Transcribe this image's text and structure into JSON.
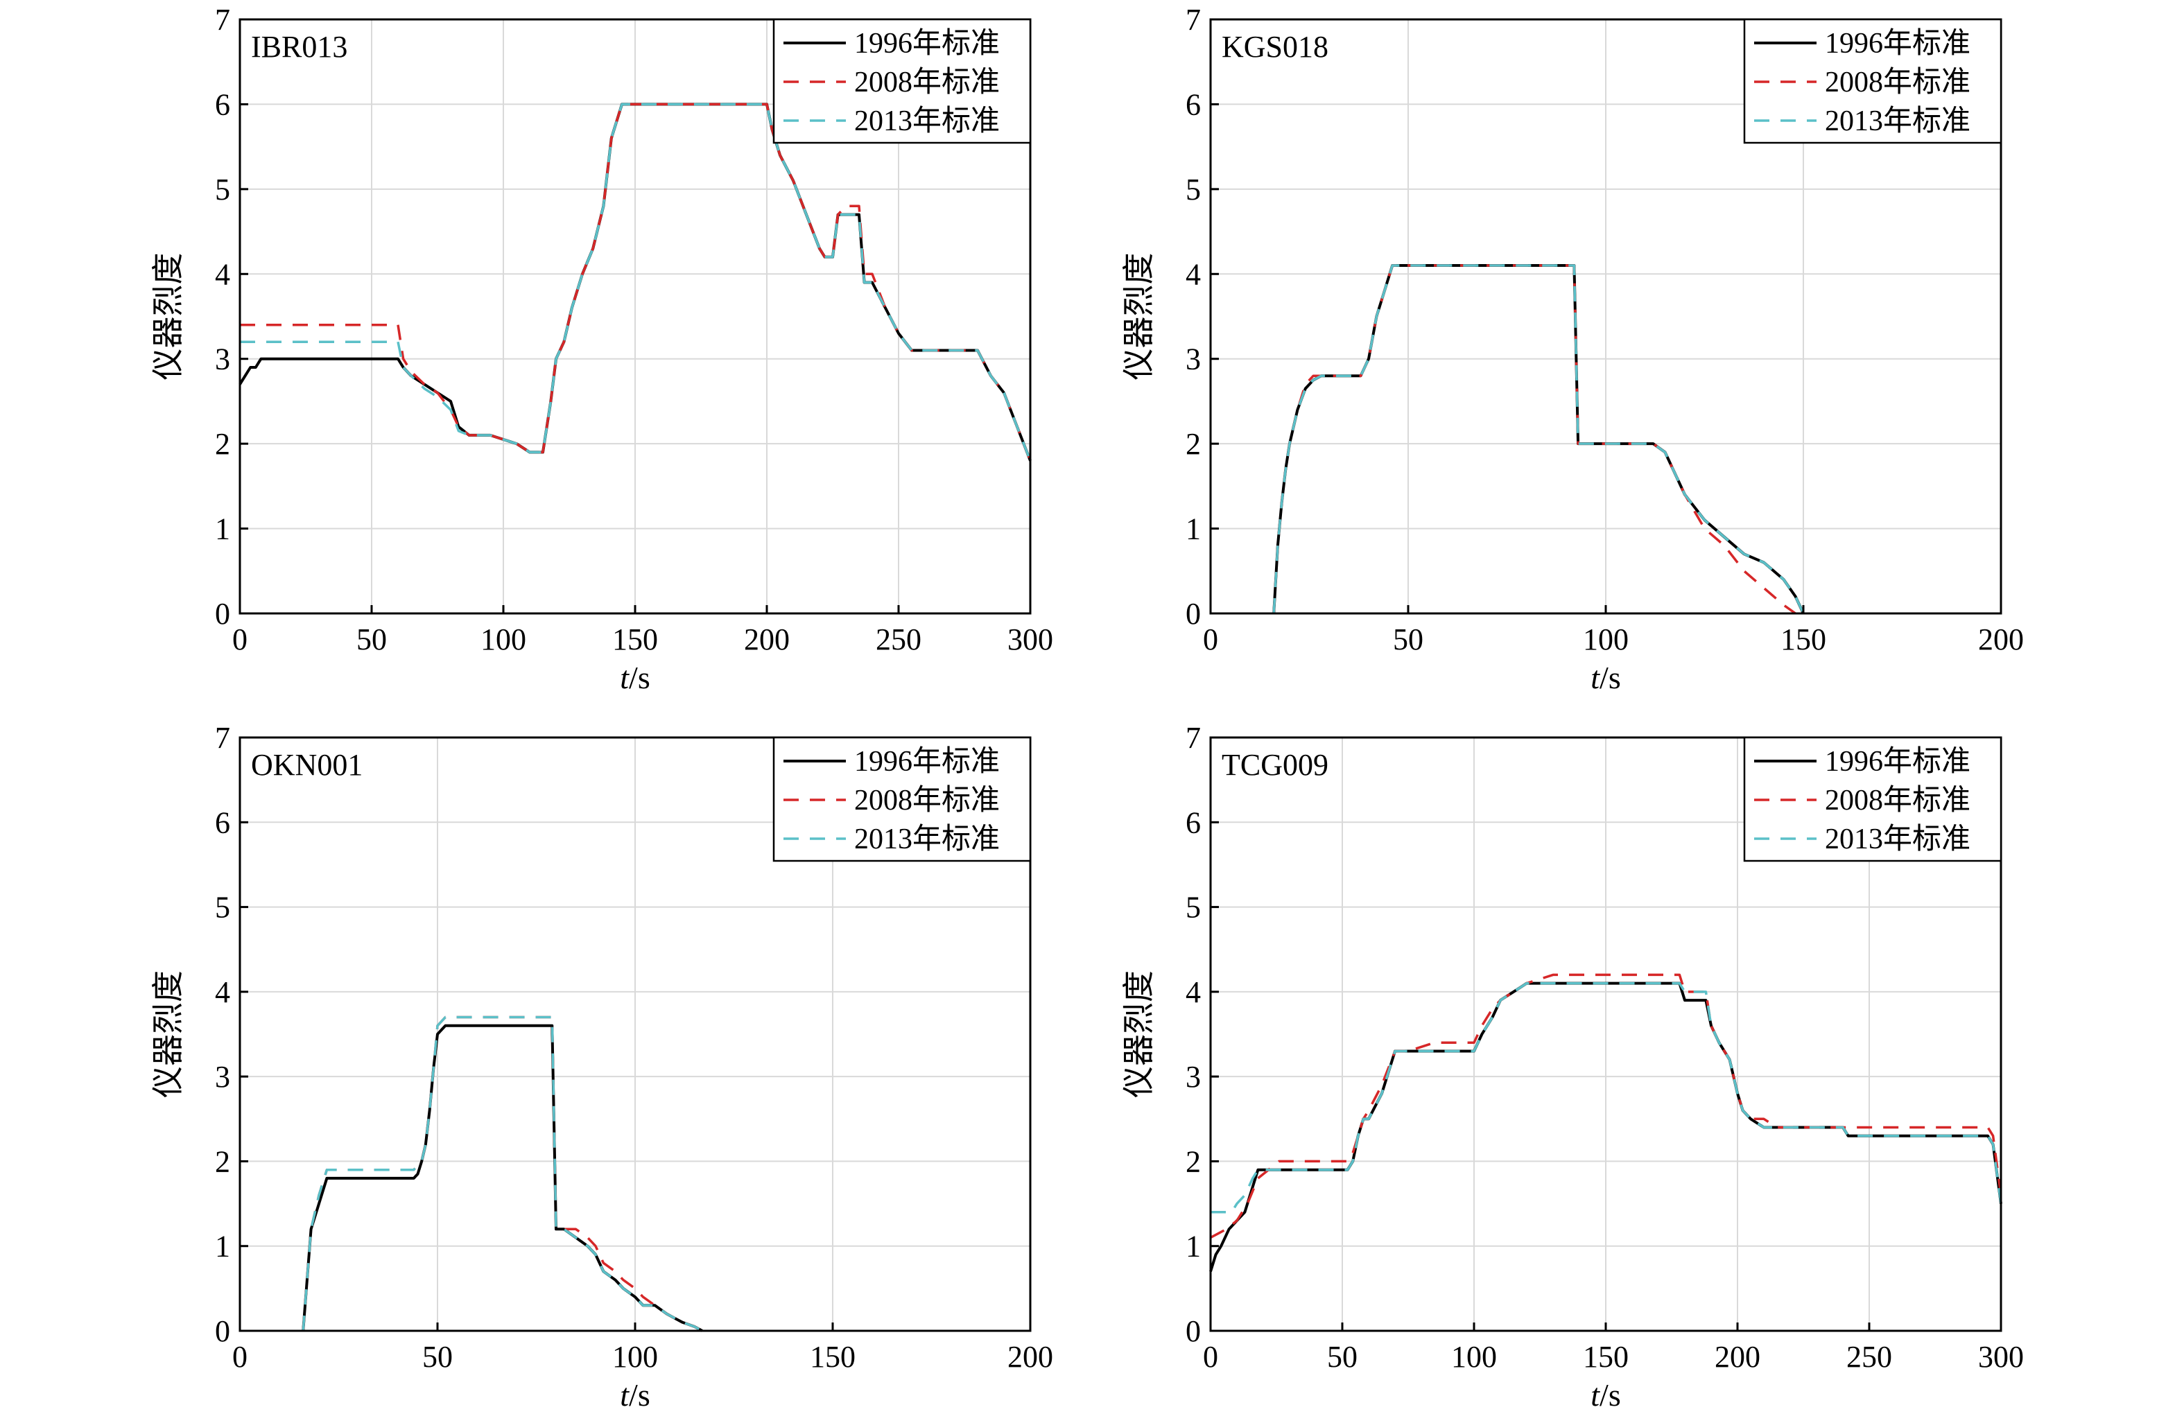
{
  "colors": {
    "series_1996": "#000000",
    "series_2008": "#d62728",
    "series_2013": "#5bc0c8",
    "grid": "#d9d9d9",
    "axis": "#000000"
  },
  "chart_data": [
    {
      "type": "line",
      "station": "IBR013",
      "xlabel_italic": "t",
      "xlabel_unit": "/s",
      "ylabel": "仪器烈度",
      "xlim": [
        0,
        300
      ],
      "ylim": [
        0,
        7
      ],
      "xticks": [
        0,
        50,
        100,
        150,
        200,
        250,
        300
      ],
      "yticks": [
        0,
        1,
        2,
        3,
        4,
        5,
        6,
        7
      ],
      "grid": true,
      "legend_position": "top-right",
      "series": [
        {
          "name": "1996年标准",
          "style": "solid",
          "x": [
            0,
            2,
            4,
            6,
            8,
            60,
            62,
            65,
            70,
            75,
            80,
            83,
            87,
            95,
            105,
            110,
            115,
            118,
            120,
            123,
            126,
            130,
            134,
            138,
            141,
            145,
            150,
            200,
            202,
            205,
            210,
            215,
            220,
            222,
            225,
            227,
            235,
            237,
            240,
            245,
            250,
            255,
            260,
            265,
            270,
            275,
            280,
            285,
            290,
            295,
            300
          ],
          "y": [
            2.7,
            2.8,
            2.9,
            2.9,
            3.0,
            3.0,
            2.9,
            2.8,
            2.7,
            2.6,
            2.5,
            2.2,
            2.1,
            2.1,
            2.0,
            1.9,
            1.9,
            2.5,
            3.0,
            3.2,
            3.6,
            4.0,
            4.3,
            4.8,
            5.6,
            6.0,
            6.0,
            6.0,
            5.7,
            5.4,
            5.1,
            4.7,
            4.3,
            4.2,
            4.2,
            4.7,
            4.7,
            3.9,
            3.9,
            3.6,
            3.3,
            3.1,
            3.1,
            3.1,
            3.1,
            3.1,
            3.1,
            2.8,
            2.6,
            2.2,
            1.8
          ]
        },
        {
          "name": "2008年标准",
          "style": "dashed",
          "x": [
            0,
            60,
            62,
            65,
            70,
            75,
            80,
            83,
            87,
            95,
            105,
            110,
            115,
            118,
            120,
            123,
            126,
            130,
            134,
            138,
            141,
            145,
            150,
            200,
            202,
            205,
            210,
            215,
            220,
            222,
            225,
            227,
            230,
            235,
            237,
            240,
            245,
            250,
            255,
            260,
            265,
            270,
            275,
            280,
            285,
            290,
            295,
            300
          ],
          "y": [
            3.4,
            3.4,
            3.0,
            2.85,
            2.7,
            2.6,
            2.4,
            2.2,
            2.1,
            2.1,
            2.0,
            1.9,
            1.9,
            2.5,
            3.0,
            3.2,
            3.6,
            4.0,
            4.3,
            4.8,
            5.6,
            6.0,
            6.0,
            6.0,
            5.7,
            5.4,
            5.1,
            4.7,
            4.3,
            4.2,
            4.2,
            4.7,
            4.8,
            4.8,
            4.0,
            4.0,
            3.6,
            3.3,
            3.1,
            3.1,
            3.1,
            3.1,
            3.1,
            3.1,
            2.8,
            2.6,
            2.2,
            1.8
          ]
        },
        {
          "name": "2013年标准",
          "style": "dashed",
          "x": [
            0,
            60,
            62,
            65,
            70,
            75,
            80,
            83,
            87,
            95,
            105,
            110,
            115,
            118,
            120,
            123,
            126,
            130,
            134,
            138,
            141,
            145,
            150,
            200,
            202,
            205,
            210,
            215,
            220,
            222,
            225,
            227,
            235,
            237,
            240,
            245,
            250,
            255,
            260,
            265,
            270,
            275,
            280,
            285,
            290,
            295,
            300
          ],
          "y": [
            3.2,
            3.2,
            2.9,
            2.8,
            2.65,
            2.55,
            2.4,
            2.15,
            2.1,
            2.1,
            2.0,
            1.9,
            1.9,
            2.5,
            3.0,
            3.2,
            3.6,
            4.0,
            4.3,
            4.8,
            5.6,
            6.0,
            6.0,
            6.0,
            5.7,
            5.4,
            5.1,
            4.7,
            4.3,
            4.2,
            4.2,
            4.7,
            4.7,
            3.9,
            3.9,
            3.6,
            3.3,
            3.1,
            3.1,
            3.1,
            3.1,
            3.1,
            3.1,
            2.8,
            2.6,
            2.2,
            1.8
          ]
        }
      ]
    },
    {
      "type": "line",
      "station": "KGS018",
      "xlabel_italic": "t",
      "xlabel_unit": "/s",
      "ylabel": "仪器烈度",
      "xlim": [
        0,
        200
      ],
      "ylim": [
        0,
        7
      ],
      "xticks": [
        0,
        50,
        100,
        150,
        200
      ],
      "yticks": [
        0,
        1,
        2,
        3,
        4,
        5,
        6,
        7
      ],
      "grid": true,
      "legend_position": "top-right",
      "series": [
        {
          "name": "1996年标准",
          "style": "solid",
          "x": [
            16,
            17,
            18,
            19,
            20,
            22,
            24,
            26,
            28,
            35,
            38,
            40,
            42,
            44,
            46,
            48,
            50,
            55,
            60,
            92,
            93,
            100,
            110,
            112,
            115,
            118,
            120,
            125,
            130,
            135,
            140,
            145,
            148,
            150
          ],
          "y": [
            0,
            0.8,
            1.3,
            1.7,
            2.0,
            2.4,
            2.65,
            2.75,
            2.8,
            2.8,
            2.8,
            3.0,
            3.5,
            3.8,
            4.1,
            4.1,
            4.1,
            4.1,
            4.1,
            4.1,
            2.0,
            2.0,
            2.0,
            2.0,
            1.9,
            1.6,
            1.4,
            1.1,
            0.9,
            0.7,
            0.6,
            0.4,
            0.2,
            0.0
          ]
        },
        {
          "name": "2008年标准",
          "style": "dashed",
          "x": [
            16,
            17,
            18,
            19,
            20,
            22,
            24,
            26,
            28,
            35,
            38,
            40,
            42,
            44,
            46,
            48,
            50,
            55,
            60,
            92,
            93,
            100,
            110,
            112,
            115,
            118,
            120,
            125,
            130,
            135,
            140,
            145,
            148
          ],
          "y": [
            0,
            0.8,
            1.3,
            1.7,
            2.0,
            2.4,
            2.7,
            2.8,
            2.8,
            2.8,
            2.8,
            3.0,
            3.5,
            3.8,
            4.1,
            4.1,
            4.1,
            4.1,
            4.1,
            4.1,
            2.0,
            2.0,
            2.0,
            2.0,
            1.9,
            1.6,
            1.4,
            1.0,
            0.8,
            0.5,
            0.3,
            0.1,
            0.0
          ]
        },
        {
          "name": "2013年标准",
          "style": "dashed",
          "x": [
            16,
            17,
            18,
            19,
            20,
            22,
            24,
            26,
            28,
            35,
            38,
            40,
            42,
            44,
            46,
            48,
            50,
            55,
            60,
            92,
            93,
            100,
            110,
            112,
            115,
            118,
            120,
            125,
            130,
            135,
            140,
            145,
            148,
            150
          ],
          "y": [
            0,
            0.8,
            1.3,
            1.7,
            2.0,
            2.4,
            2.65,
            2.75,
            2.8,
            2.8,
            2.8,
            3.0,
            3.5,
            3.8,
            4.1,
            4.1,
            4.1,
            4.1,
            4.1,
            4.1,
            2.0,
            2.0,
            2.0,
            2.0,
            1.9,
            1.6,
            1.4,
            1.1,
            0.9,
            0.7,
            0.6,
            0.4,
            0.2,
            0.0
          ]
        }
      ]
    },
    {
      "type": "line",
      "station": "OKN001",
      "xlabel_italic": "t",
      "xlabel_unit": "/s",
      "ylabel": "仪器烈度",
      "xlim": [
        0,
        200
      ],
      "ylim": [
        0,
        7
      ],
      "xticks": [
        0,
        50,
        100,
        150,
        200
      ],
      "yticks": [
        0,
        1,
        2,
        3,
        4,
        5,
        6,
        7
      ],
      "grid": true,
      "legend_position": "top-right",
      "series": [
        {
          "name": "1996年标准",
          "style": "solid",
          "x": [
            16,
            17,
            18,
            20,
            22,
            44,
            45,
            46,
            47,
            48,
            49,
            50,
            52,
            60,
            79,
            80,
            82,
            85,
            88,
            90,
            92,
            95,
            97,
            100,
            102,
            105,
            108,
            110,
            112,
            115,
            117
          ],
          "y": [
            0,
            0.6,
            1.2,
            1.5,
            1.8,
            1.8,
            1.85,
            2.0,
            2.2,
            2.6,
            3.1,
            3.5,
            3.6,
            3.6,
            3.6,
            1.2,
            1.2,
            1.1,
            1.0,
            0.9,
            0.7,
            0.6,
            0.5,
            0.4,
            0.3,
            0.3,
            0.2,
            0.15,
            0.1,
            0.05,
            0.0
          ]
        },
        {
          "name": "2008年标准",
          "style": "dashed",
          "x": [
            16,
            17,
            18,
            20,
            22,
            44,
            45,
            46,
            47,
            48,
            49,
            50,
            52,
            60,
            79,
            80,
            82,
            85,
            88,
            90,
            92,
            95,
            97,
            100,
            102,
            105,
            108,
            110,
            112,
            115,
            117
          ],
          "y": [
            0,
            0.6,
            1.2,
            1.6,
            1.9,
            1.9,
            1.95,
            2.0,
            2.2,
            2.6,
            3.1,
            3.6,
            3.7,
            3.7,
            3.7,
            1.2,
            1.2,
            1.2,
            1.1,
            1.0,
            0.8,
            0.7,
            0.6,
            0.5,
            0.4,
            0.3,
            0.2,
            0.15,
            0.1,
            0.05,
            0.0
          ]
        },
        {
          "name": "2013年标准",
          "style": "dashed",
          "x": [
            16,
            17,
            18,
            20,
            22,
            44,
            45,
            46,
            47,
            48,
            49,
            50,
            52,
            60,
            79,
            80,
            82,
            85,
            88,
            90,
            92,
            95,
            97,
            100,
            102,
            105,
            108,
            110,
            112,
            115,
            117
          ],
          "y": [
            0,
            0.6,
            1.2,
            1.6,
            1.9,
            1.9,
            1.95,
            2.0,
            2.2,
            2.6,
            3.1,
            3.6,
            3.7,
            3.7,
            3.7,
            1.2,
            1.2,
            1.1,
            1.0,
            0.9,
            0.7,
            0.6,
            0.5,
            0.4,
            0.3,
            0.3,
            0.2,
            0.15,
            0.1,
            0.05,
            0.0
          ]
        }
      ]
    },
    {
      "type": "line",
      "station": "TCG009",
      "xlabel_italic": "t",
      "xlabel_unit": "/s",
      "ylabel": "仪器烈度",
      "xlim": [
        0,
        300
      ],
      "ylim": [
        0,
        7
      ],
      "xticks": [
        0,
        50,
        100,
        150,
        200,
        250,
        300
      ],
      "yticks": [
        0,
        1,
        2,
        3,
        4,
        5,
        6,
        7
      ],
      "grid": true,
      "legend_position": "top-right",
      "series": [
        {
          "name": "1996年标准",
          "style": "solid",
          "x": [
            0,
            2,
            4,
            7,
            10,
            13,
            16,
            18,
            20,
            52,
            54,
            56,
            58,
            60,
            65,
            70,
            75,
            100,
            103,
            105,
            107,
            110,
            115,
            120,
            178,
            180,
            188,
            190,
            193,
            197,
            200,
            202,
            205,
            210,
            215,
            240,
            242,
            245,
            250,
            295,
            297,
            300
          ],
          "y": [
            0.7,
            0.9,
            1.0,
            1.2,
            1.3,
            1.4,
            1.7,
            1.9,
            1.9,
            1.9,
            2.0,
            2.3,
            2.5,
            2.5,
            2.8,
            3.3,
            3.3,
            3.3,
            3.5,
            3.6,
            3.7,
            3.9,
            4.0,
            4.1,
            4.1,
            3.9,
            3.9,
            3.6,
            3.4,
            3.2,
            2.8,
            2.6,
            2.5,
            2.4,
            2.4,
            2.4,
            2.3,
            2.3,
            2.3,
            2.3,
            2.2,
            1.5
          ]
        },
        {
          "name": "2008年标准",
          "style": "dashed",
          "x": [
            0,
            3,
            6,
            10,
            14,
            18,
            22,
            26,
            52,
            54,
            56,
            58,
            60,
            65,
            70,
            75,
            85,
            95,
            100,
            103,
            105,
            107,
            110,
            115,
            120,
            130,
            178,
            180,
            188,
            190,
            193,
            197,
            200,
            202,
            205,
            210,
            215,
            240,
            250,
            295,
            297,
            300
          ],
          "y": [
            1.1,
            1.15,
            1.2,
            1.3,
            1.5,
            1.8,
            1.9,
            2.0,
            2.0,
            2.1,
            2.3,
            2.5,
            2.6,
            2.9,
            3.3,
            3.3,
            3.4,
            3.4,
            3.4,
            3.6,
            3.7,
            3.8,
            3.9,
            4.0,
            4.1,
            4.2,
            4.2,
            4.0,
            4.0,
            3.6,
            3.4,
            3.2,
            2.8,
            2.6,
            2.5,
            2.5,
            2.4,
            2.4,
            2.4,
            2.4,
            2.3,
            1.6
          ]
        },
        {
          "name": "2013年标准",
          "style": "dashed",
          "x": [
            0,
            8,
            10,
            13,
            16,
            18,
            20,
            52,
            54,
            56,
            58,
            60,
            65,
            70,
            75,
            100,
            103,
            105,
            107,
            110,
            115,
            120,
            178,
            180,
            188,
            190,
            193,
            197,
            200,
            202,
            205,
            210,
            215,
            240,
            242,
            245,
            250,
            295,
            297,
            300
          ],
          "y": [
            1.4,
            1.4,
            1.5,
            1.6,
            1.8,
            1.9,
            1.9,
            1.9,
            2.0,
            2.3,
            2.5,
            2.5,
            2.8,
            3.3,
            3.3,
            3.3,
            3.5,
            3.6,
            3.7,
            3.9,
            4.0,
            4.1,
            4.1,
            4.0,
            4.0,
            3.6,
            3.4,
            3.2,
            2.8,
            2.6,
            2.5,
            2.4,
            2.4,
            2.4,
            2.3,
            2.3,
            2.3,
            2.3,
            2.2,
            1.5
          ]
        }
      ]
    }
  ]
}
